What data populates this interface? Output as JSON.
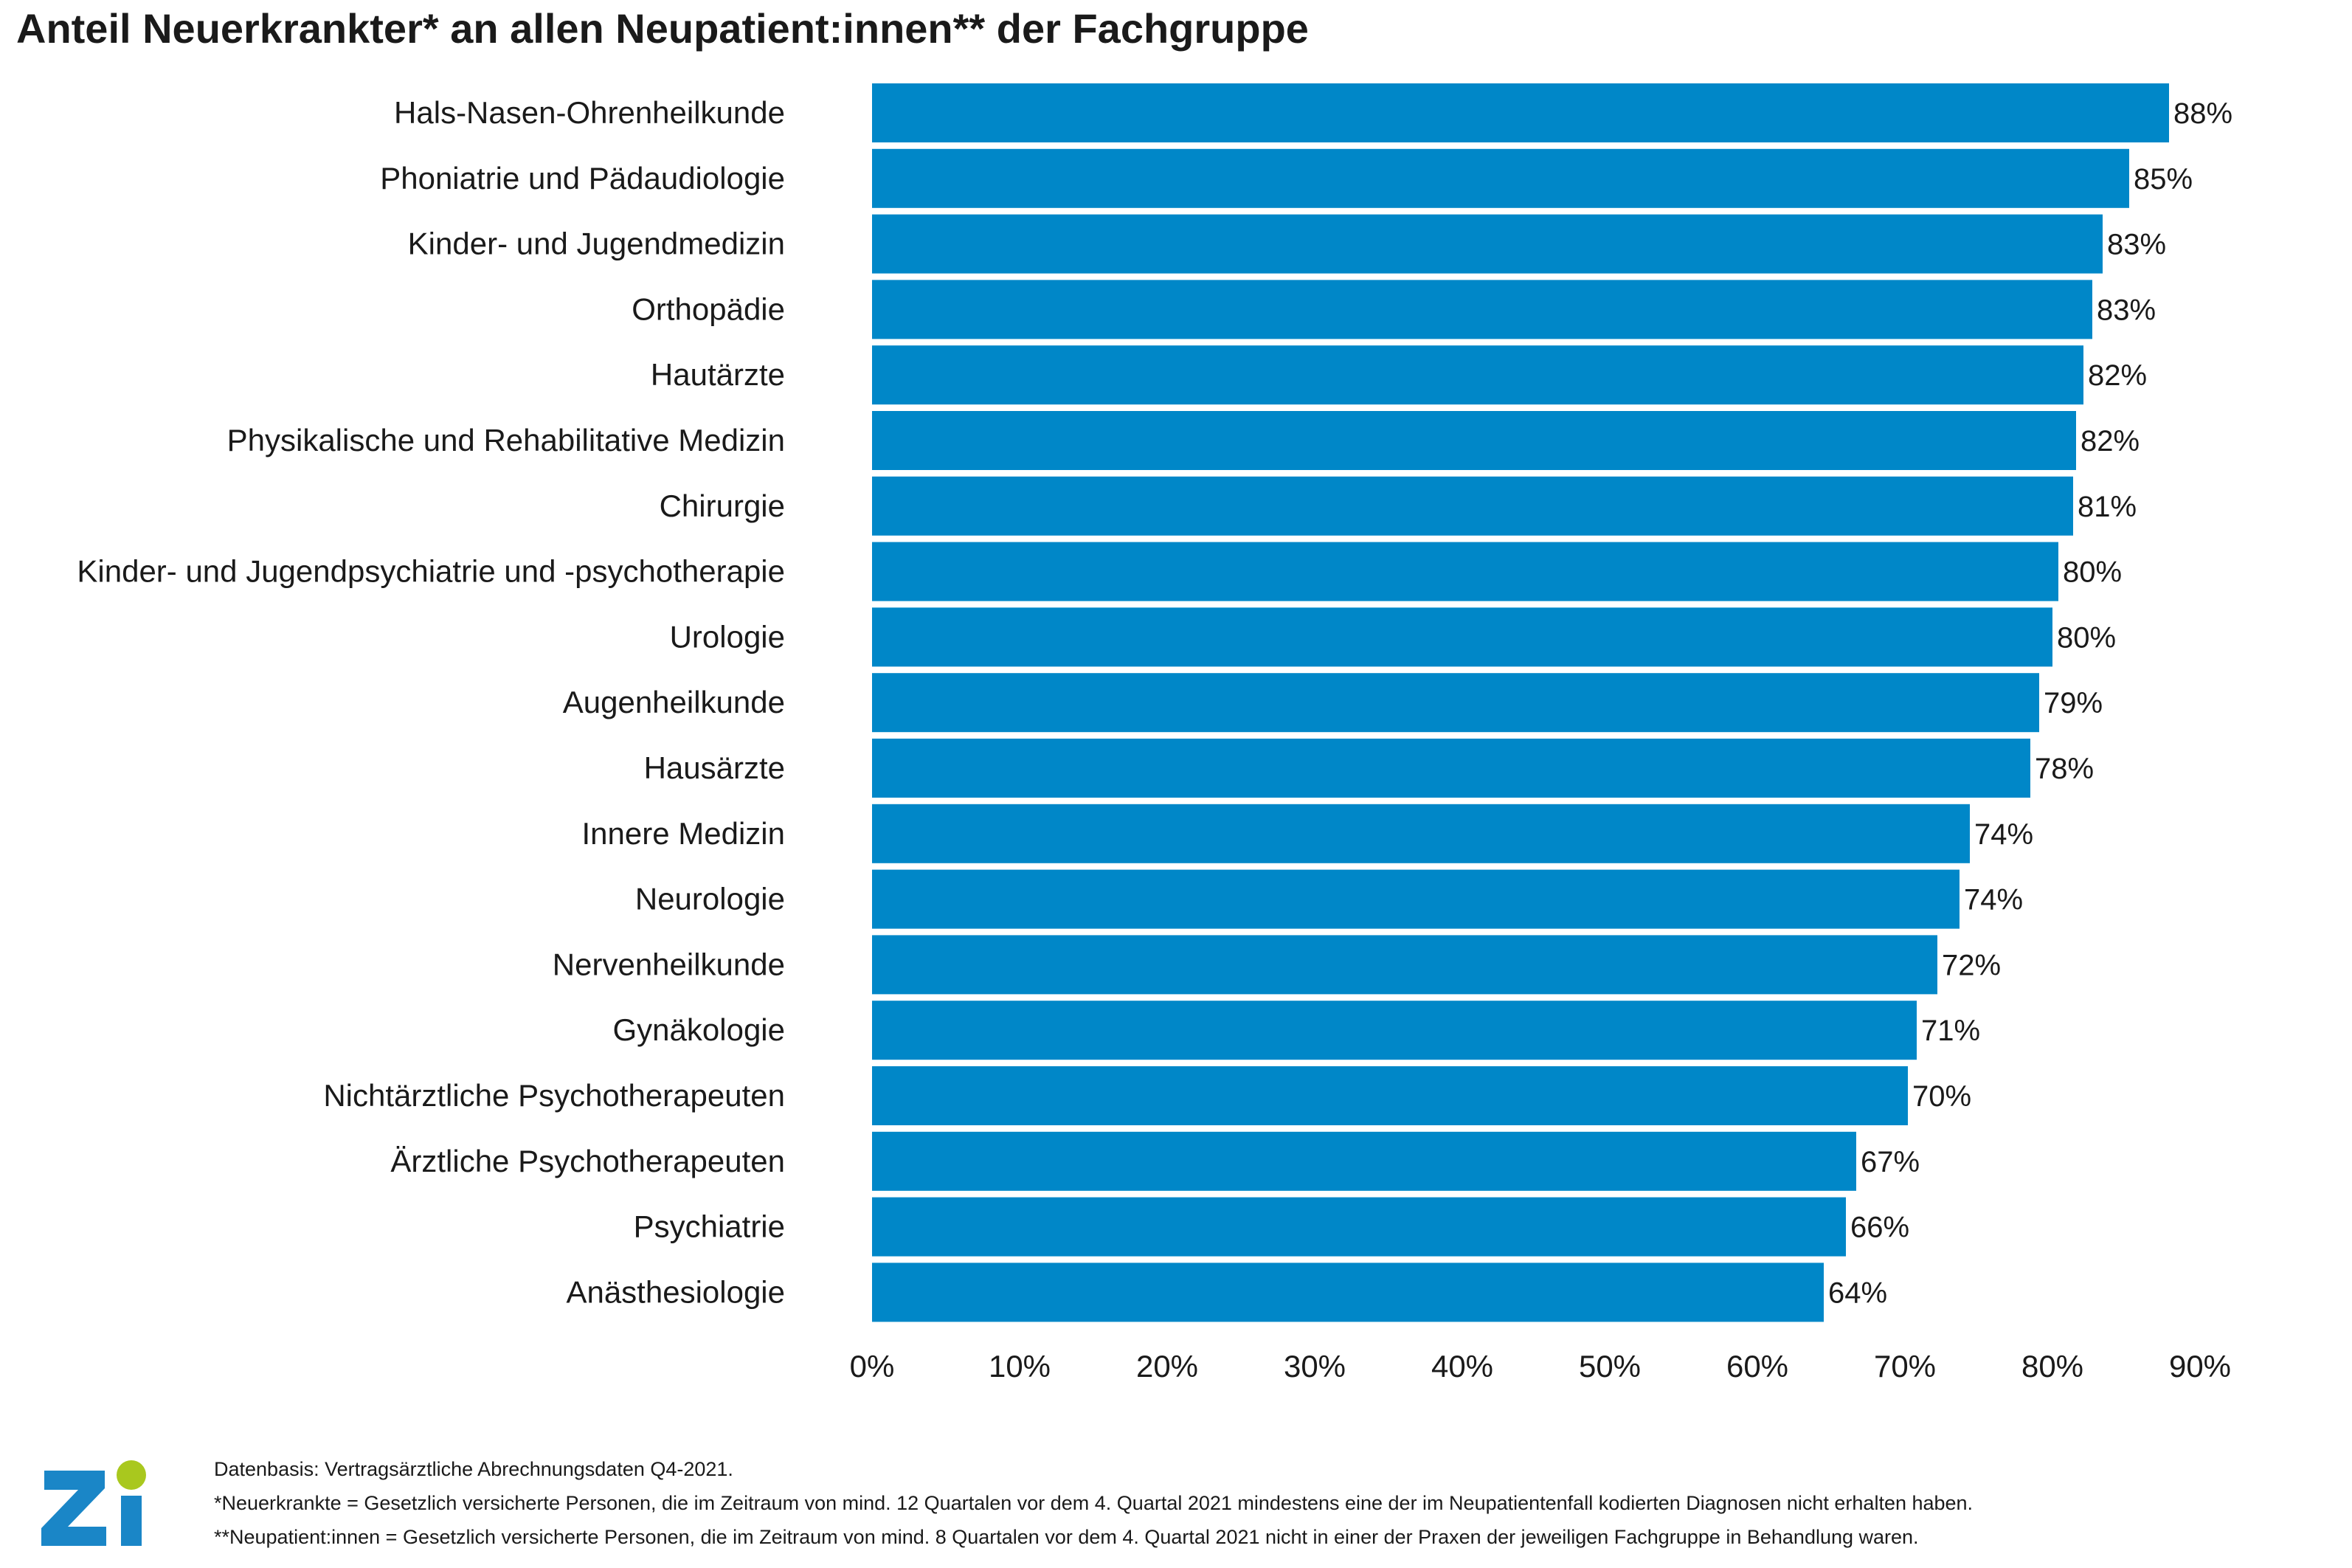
{
  "chart_data": {
    "type": "bar",
    "orientation": "horizontal",
    "title": "Anteil Neuerkrankter* an allen Neupatient:innen** der Fachgruppe",
    "xlabel": "",
    "ylabel": "",
    "xlim": [
      0,
      90
    ],
    "xticks": [
      "0%",
      "10%",
      "20%",
      "30%",
      "40%",
      "50%",
      "60%",
      "70%",
      "80%",
      "90%"
    ],
    "categories": [
      "Hals-Nasen-Ohrenheilkunde",
      "Phoniatrie und Pädaudiologie",
      "Kinder- und Jugendmedizin",
      "Orthopädie",
      "Hautärzte",
      "Physikalische und Rehabilitative Medizin",
      "Chirurgie",
      "Kinder- und Jugendpsychiatrie und -psychotherapie",
      "Urologie",
      "Augenheilkunde",
      "Hausärzte",
      "Innere Medizin",
      "Neurologie",
      "Nervenheilkunde",
      "Gynäkologie",
      "Nichtärztliche Psychotherapeuten",
      "Ärztliche Psychotherapeuten",
      "Psychiatrie",
      "Anästhesiologie"
    ],
    "values": [
      87.9,
      85.2,
      83.4,
      82.7,
      82.1,
      81.6,
      81.4,
      80.4,
      80.0,
      79.1,
      78.5,
      74.4,
      73.7,
      72.2,
      70.8,
      70.2,
      66.7,
      66.0,
      64.5
    ],
    "data_labels": [
      "88%",
      "85%",
      "83%",
      "83%",
      "82%",
      "82%",
      "81%",
      "80%",
      "80%",
      "79%",
      "78%",
      "74%",
      "74%",
      "72%",
      "71%",
      "70%",
      "67%",
      "66%",
      "64%"
    ],
    "bar_color": "#0087c8",
    "grid": false,
    "legend": "none"
  },
  "footer": {
    "source": "Datenbasis: Vertragsärztliche Abrechnungsdaten Q4-2021.",
    "note1": "*Neuerkrankte = Gesetzlich versicherte Personen, die im Zeitraum von mind. 12 Quartalen vor dem 4. Quartal 2021 mindestens eine der im Neupatientenfall kodierten Diagnosen nicht erhalten haben.",
    "note2": "**Neupatient:innen = Gesetzlich versicherte Personen, die im Zeitraum von mind. 8 Quartalen vor dem 4. Quartal 2021 nicht in einer der Praxen der jeweiligen Fachgruppe in Behandlung waren."
  },
  "logo": {
    "text": "Zi",
    "color": "#1a86c7",
    "dot_color": "#a9c81e"
  }
}
